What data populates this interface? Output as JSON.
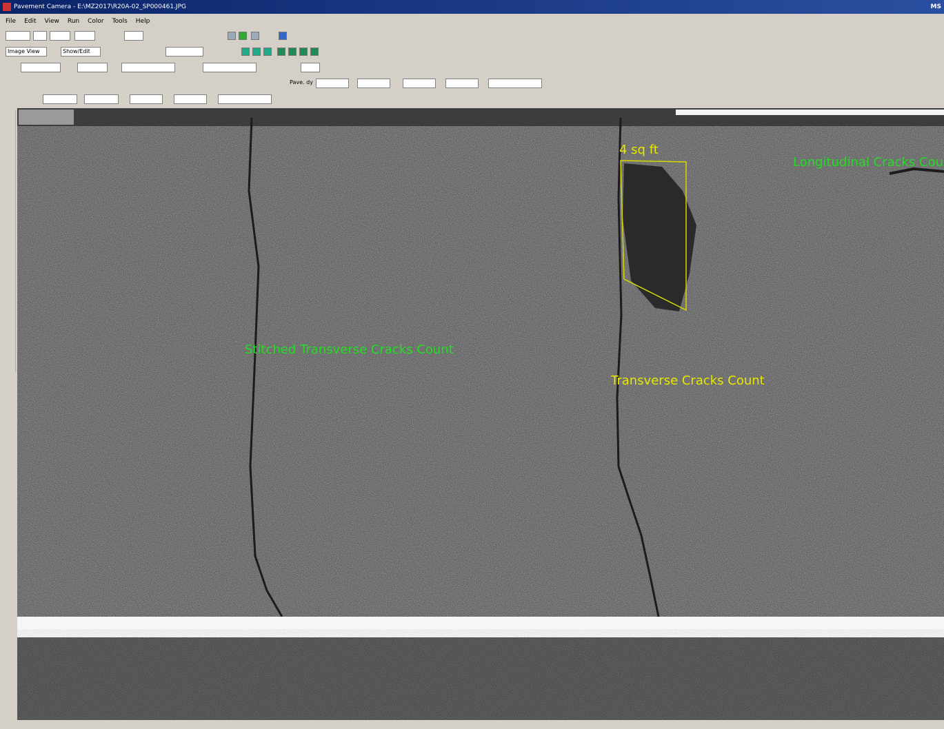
{
  "window": {
    "title": "Pavement Camera - E:\\MZ2017\\R20A-02_SP000461.JPG",
    "corner_label": "MS"
  },
  "menu": [
    "File",
    "Edit",
    "View",
    "Run",
    "Color",
    "Tools",
    "Help"
  ],
  "toolbar": {
    "view_select": "Image View",
    "mode_select": "Show/Edit",
    "pave_label": "Pave. dy"
  },
  "annotations": {
    "area": "4 sq ft",
    "longitudinal": "Longitudinal Cracks Count",
    "stitched": "Stitched Transverse Cracks Count",
    "transverse": "Transverse Cracks Count"
  }
}
